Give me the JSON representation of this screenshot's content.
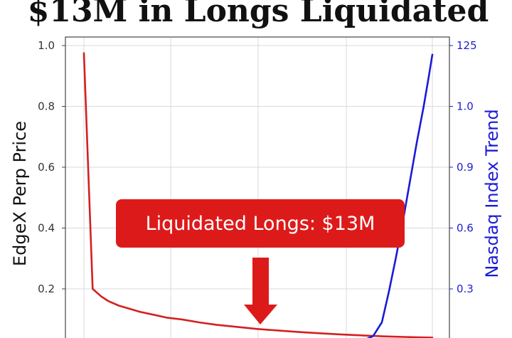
{
  "chart_data": {
    "type": "line",
    "title": "$13M in Longs Liquidated",
    "ylabel": "EdgeX Perp Price",
    "y2label": "Nasdaq Index Trend",
    "ylim": [
      0.0,
      1.0
    ],
    "y_ticks": [
      "1.0",
      "0.8",
      "0.6",
      "0.4",
      "0.2"
    ],
    "y2_ticks": [
      "125",
      "1.0",
      "0.9",
      "0.6",
      "0.3"
    ],
    "grid": true,
    "series": [
      {
        "axis": "left",
        "color": "#d42020",
        "points": [
          [
            0.0,
            0.975
          ],
          [
            0.025,
            0.2
          ],
          [
            0.05,
            0.175
          ],
          [
            0.07,
            0.16
          ],
          [
            0.1,
            0.145
          ],
          [
            0.13,
            0.135
          ],
          [
            0.16,
            0.125
          ],
          [
            0.2,
            0.115
          ],
          [
            0.24,
            0.105
          ],
          [
            0.28,
            0.1
          ],
          [
            0.33,
            0.09
          ],
          [
            0.38,
            0.082
          ],
          [
            0.44,
            0.075
          ],
          [
            0.5,
            0.068
          ],
          [
            0.56,
            0.063
          ],
          [
            0.62,
            0.058
          ],
          [
            0.68,
            0.054
          ],
          [
            0.74,
            0.05
          ],
          [
            0.8,
            0.047
          ],
          [
            0.86,
            0.044
          ],
          [
            0.92,
            0.042
          ],
          [
            0.96,
            0.041
          ],
          [
            1.0,
            0.04
          ]
        ]
      },
      {
        "axis": "right",
        "color": "#1a1ad8",
        "points": [
          [
            0.8,
            0.03
          ],
          [
            0.83,
            0.045
          ],
          [
            0.855,
            0.09
          ],
          [
            0.875,
            0.19
          ],
          [
            0.895,
            0.3
          ],
          [
            0.915,
            0.42
          ],
          [
            0.935,
            0.55
          ],
          [
            0.955,
            0.68
          ],
          [
            0.975,
            0.8
          ],
          [
            0.99,
            0.9
          ],
          [
            1.0,
            0.97
          ]
        ]
      }
    ],
    "annotations": [
      {
        "text": "Liquidated Longs: $13M",
        "color": "#dd1a1a"
      }
    ]
  }
}
